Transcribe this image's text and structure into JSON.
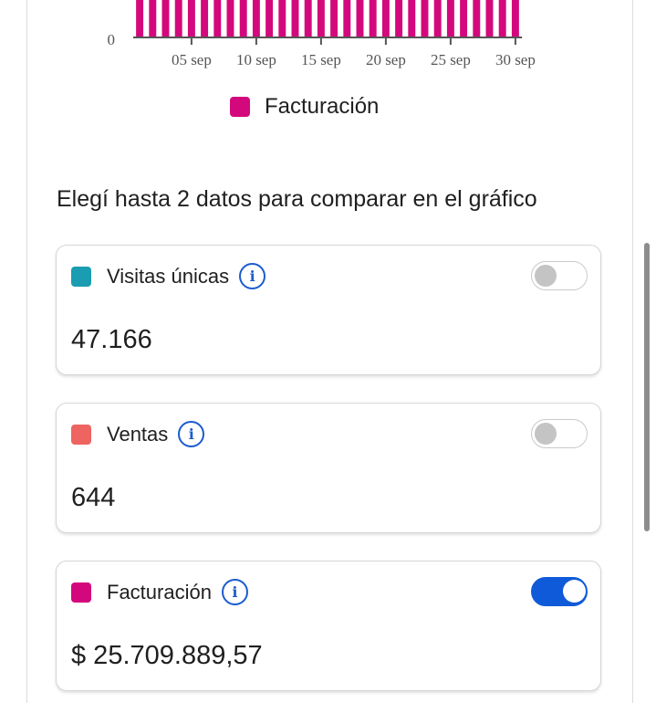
{
  "chart_data": {
    "type": "bar",
    "series": [
      {
        "name": "Facturación",
        "color": "#d4087d"
      }
    ],
    "x_tick_labels": [
      "05 sep",
      "10 sep",
      "15 sep",
      "20 sep",
      "25 sep",
      "30 sep"
    ],
    "y_tick_labels": [
      "0"
    ],
    "bar_count": 30
  },
  "legend": {
    "label": "Facturación",
    "color": "#d4087d"
  },
  "compare": {
    "title": "Elegí hasta 2 datos para comparar en el gráfico"
  },
  "metrics": [
    {
      "label": "Visitas únicas",
      "value": "47.166",
      "color": "#1a9db0",
      "enabled": false
    },
    {
      "label": "Ventas",
      "value": "644",
      "color": "#ee6461",
      "enabled": false
    },
    {
      "label": "Facturación",
      "value": "$ 25.709.889,57",
      "color": "#d4087d",
      "enabled": true
    }
  ],
  "icons": {
    "info": "info-icon",
    "info_glyph": "i"
  }
}
